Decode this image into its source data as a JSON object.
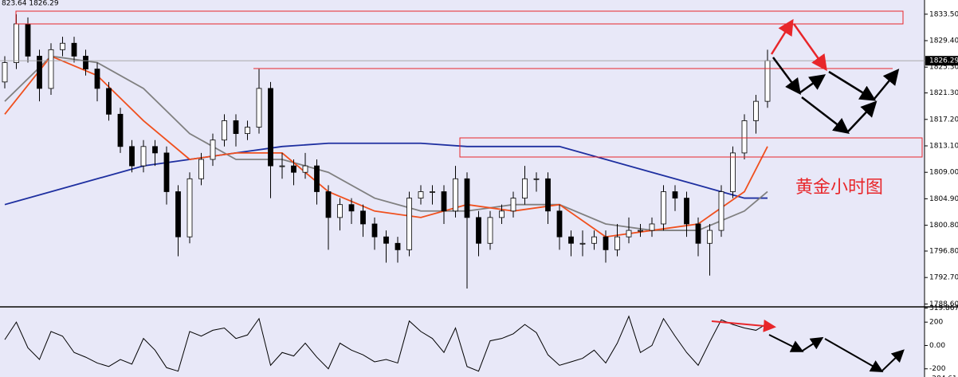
{
  "chart_data": [
    {
      "type": "candlestick",
      "title": "823.64 1826.29",
      "annotation": "黄金小时图",
      "last_price": 1826.29,
      "ylim": [
        1788.4,
        1835.7
      ],
      "yticks": [
        {
          "value": 1833.5,
          "label": "1833.50"
        },
        {
          "value": 1829.4,
          "label": "1829.40"
        },
        {
          "value": 1825.3,
          "label": "1825.30"
        },
        {
          "value": 1821.3,
          "label": "1821.30"
        },
        {
          "value": 1817.2,
          "label": "1817.20"
        },
        {
          "value": 1813.1,
          "label": "1813.10"
        },
        {
          "value": 1809,
          "label": "1809.00"
        },
        {
          "value": 1804.9,
          "label": "1804.90"
        },
        {
          "value": 1800.8,
          "label": "1800.80"
        },
        {
          "value": 1796.8,
          "label": "1796.80"
        },
        {
          "value": 1792.7,
          "label": "1792.70"
        },
        {
          "value": 1788.6,
          "label": "1788.60"
        }
      ],
      "open": [
        1823,
        1826,
        1832,
        1827,
        1822,
        1828,
        1829,
        1827,
        1825,
        1822,
        1818,
        1813,
        1810,
        1813,
        1812,
        1806,
        1799,
        1808,
        1811,
        1814,
        1817,
        1815,
        1816,
        1822,
        1810,
        1810,
        1809,
        1810,
        1806,
        1802,
        1804,
        1803,
        1801,
        1799,
        1798,
        1797,
        1805,
        1806,
        1806,
        1803,
        1808,
        1802,
        1798,
        1802,
        1803,
        1805,
        1808,
        1808,
        1803,
        1799,
        1798,
        1798,
        1799,
        1797,
        1799,
        1800,
        1800,
        1801,
        1806,
        1805,
        1801,
        1798,
        1800,
        1806,
        1812,
        1817,
        1820
      ],
      "high": [
        1827,
        1833.5,
        1833,
        1828,
        1829,
        1830,
        1830,
        1828,
        1826,
        1823,
        1819,
        1814,
        1814,
        1814,
        1813,
        1807,
        1809,
        1812,
        1815,
        1818,
        1818,
        1817,
        1825,
        1823,
        1812,
        1811,
        1812,
        1811,
        1807,
        1805,
        1805,
        1804,
        1802,
        1800,
        1799,
        1806,
        1807,
        1807,
        1807,
        1810,
        1809,
        1803,
        1803,
        1804,
        1806,
        1810,
        1809,
        1809,
        1804,
        1800,
        1800,
        1800,
        1800,
        1801,
        1802,
        1801,
        1802,
        1807,
        1807,
        1806,
        1802,
        1801,
        1807,
        1813,
        1818,
        1821,
        1828
      ],
      "low": [
        1822,
        1825,
        1826,
        1820,
        1821,
        1827,
        1826,
        1824,
        1820,
        1817,
        1812,
        1809,
        1809,
        1810,
        1804,
        1796,
        1798,
        1807,
        1810,
        1813,
        1813,
        1814,
        1815,
        1805,
        1808,
        1807,
        1808,
        1804,
        1797,
        1800,
        1801,
        1799,
        1797,
        1795,
        1795,
        1796,
        1804,
        1804,
        1801,
        1802,
        1791,
        1796,
        1797,
        1801,
        1802,
        1804,
        1806,
        1801,
        1797,
        1796,
        1796,
        1797,
        1795,
        1796,
        1798,
        1799,
        1799,
        1800,
        1803,
        1799,
        1796,
        1793,
        1799,
        1805,
        1811,
        1815,
        1819
      ],
      "close": [
        1826,
        1832,
        1827,
        1822,
        1828,
        1829,
        1827,
        1825,
        1822,
        1818,
        1813,
        1810,
        1813,
        1812,
        1806,
        1799,
        1808,
        1811,
        1814,
        1817,
        1815,
        1816,
        1822,
        1810,
        1810,
        1809,
        1810,
        1806,
        1802,
        1804,
        1803,
        1801,
        1799,
        1798,
        1797,
        1805,
        1806,
        1806,
        1803,
        1808,
        1802,
        1798,
        1802,
        1803,
        1805,
        1808,
        1808,
        1803,
        1799,
        1798,
        1798,
        1799,
        1797,
        1799,
        1800,
        1800,
        1801,
        1806,
        1805,
        1801,
        1798,
        1800,
        1806,
        1812,
        1817,
        1820,
        1826.29
      ],
      "series": [
        {
          "color": "#1e2fa0",
          "x": [
            0,
            4,
            8,
            12,
            16,
            20,
            24,
            28,
            32,
            36,
            40,
            44,
            48,
            52,
            56,
            60,
            64,
            66
          ],
          "values": [
            1804,
            1806,
            1808,
            1810,
            1811,
            1812,
            1813,
            1813.5,
            1813.5,
            1813.5,
            1813,
            1813,
            1813,
            1811,
            1809,
            1807,
            1805,
            1805
          ]
        },
        {
          "color": "#808080",
          "x": [
            0,
            4,
            8,
            12,
            16,
            20,
            24,
            28,
            32,
            36,
            40,
            44,
            48,
            52,
            56,
            60,
            64,
            66
          ],
          "values": [
            1820,
            1827,
            1826,
            1822,
            1815,
            1811,
            1811,
            1809,
            1805,
            1803,
            1803,
            1804,
            1804,
            1801,
            1800,
            1800,
            1803,
            1806
          ]
        },
        {
          "color": "#f0501e",
          "x": [
            0,
            4,
            8,
            12,
            16,
            20,
            24,
            28,
            32,
            36,
            40,
            44,
            48,
            52,
            56,
            60,
            64,
            66
          ],
          "values": [
            1818,
            1827,
            1824,
            1817,
            1811,
            1812,
            1812,
            1806,
            1803,
            1802,
            1804,
            1803,
            1804,
            1799,
            1800,
            1801,
            1806,
            1813
          ]
        }
      ]
    },
    {
      "type": "line",
      "color": "#000000",
      "ylim": [
        -270,
        324
      ],
      "yticks": [
        319.8673,
        200,
        {
          "value": 0,
          "label": "0.00"
        },
        -200,
        -284.61
      ],
      "values": [
        50,
        200,
        -20,
        -120,
        120,
        80,
        -60,
        -100,
        -150,
        -180,
        -120,
        -160,
        60,
        -40,
        -190,
        -220,
        120,
        80,
        130,
        150,
        60,
        90,
        230,
        -170,
        -60,
        -90,
        20,
        -100,
        -200,
        20,
        -40,
        -80,
        -140,
        -120,
        -150,
        210,
        120,
        60,
        -60,
        150,
        -180,
        -220,
        40,
        60,
        100,
        180,
        110,
        -80,
        -170,
        -140,
        -110,
        -40,
        -150,
        20,
        250,
        -60,
        0,
        230,
        80,
        -60,
        -170,
        30,
        220,
        180,
        150,
        130,
        190
      ]
    }
  ]
}
